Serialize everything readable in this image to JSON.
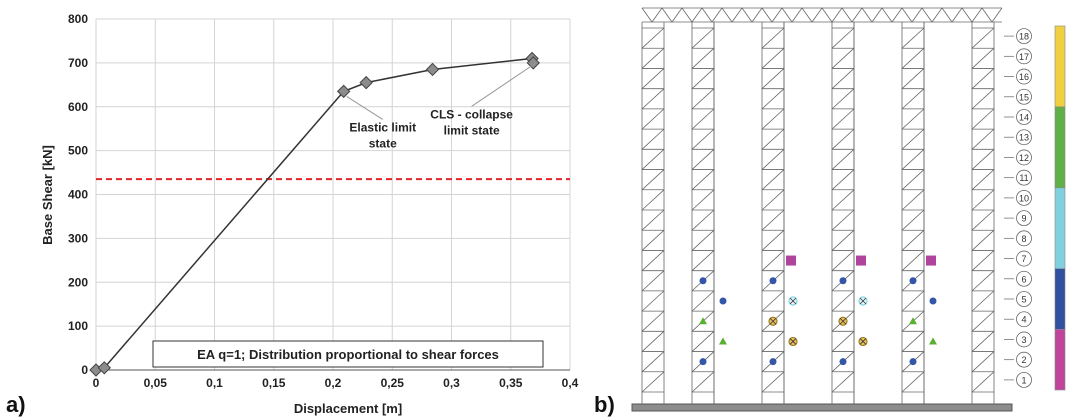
{
  "panel_a_label": "a)",
  "panel_b_label": "b)",
  "chart_data": {
    "type": "line",
    "xlabel": "Displacement [m]",
    "ylabel": "Base Shear [kN]",
    "xlim": [
      0,
      0.4
    ],
    "ylim": [
      0,
      800
    ],
    "x_ticks": [
      "0",
      "0,05",
      "0,1",
      "0,15",
      "0,2",
      "0,25",
      "0,3",
      "0,35",
      "0,4"
    ],
    "y_ticks": [
      "0",
      "100",
      "200",
      "300",
      "400",
      "500",
      "600",
      "700",
      "800"
    ],
    "grid": true,
    "series": [
      {
        "x": [
          0.0,
          0.007,
          0.209,
          0.228,
          0.284,
          0.368,
          0.369
        ],
        "y": [
          0,
          5,
          635,
          655,
          685,
          710,
          700
        ],
        "color": "#333333",
        "marker": "diamond",
        "marker_color": "#8c8c8c"
      }
    ],
    "reference_line": {
      "y": 435,
      "color": "#e0262b",
      "style": "dashed"
    },
    "annotations": [
      {
        "text": "Elastic limit state",
        "lines": [
          "Elastic limit",
          "state"
        ],
        "target_x": 0.209,
        "target_y": 635,
        "label_x": 0.242,
        "label_y": 530
      },
      {
        "text": "CLS - collapse limit state",
        "lines": [
          "CLS - collapse",
          "limit state"
        ],
        "target_x": 0.368,
        "target_y": 710,
        "label_x": 0.317,
        "label_y": 560
      }
    ],
    "legend_text": "EA q=1; Distribution proportional to shear forces"
  },
  "structure": {
    "floor_labels": [
      "1",
      "2",
      "3",
      "4",
      "5",
      "6",
      "7",
      "8",
      "9",
      "10",
      "11",
      "12",
      "13",
      "14",
      "15",
      "16",
      "17",
      "18"
    ],
    "color_bar": [
      {
        "floors": "1-3",
        "color": "#c0449c"
      },
      {
        "floors": "4-6",
        "color": "#3050a0"
      },
      {
        "floors": "7-10",
        "color": "#80d0e0"
      },
      {
        "floors": "11-14",
        "color": "#60b048"
      },
      {
        "floors": "15-18",
        "color": "#f0d040"
      }
    ],
    "hinge_colors": {
      "blue": "#3356a8",
      "green": "#58b030",
      "olive": "#a08020",
      "cyan": "#80d8e8",
      "magenta": "#b0449c"
    }
  }
}
